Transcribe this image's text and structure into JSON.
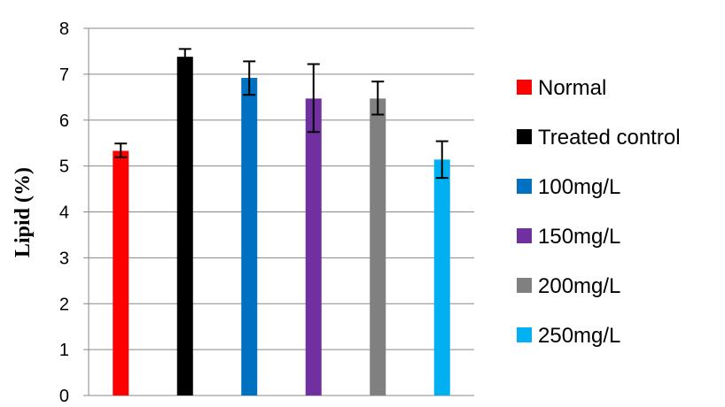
{
  "chart_data": {
    "type": "bar",
    "categories": [
      "Normal",
      "Treated control",
      "100mg/L",
      "150mg/L",
      "200mg/L",
      "250mg/L"
    ],
    "values": [
      5.33,
      7.38,
      6.92,
      6.47,
      6.47,
      5.14
    ],
    "error_bars": [
      [
        5.19,
        5.49
      ],
      [
        7.23,
        7.55
      ],
      [
        6.55,
        7.28
      ],
      [
        5.74,
        7.22
      ],
      [
        6.12,
        6.84
      ],
      [
        4.74,
        5.54
      ]
    ],
    "colors": [
      "#ff0000",
      "#000000",
      "#0070c0",
      "#7030a0",
      "#808080",
      "#00b0f0"
    ],
    "title": "",
    "xlabel": "",
    "ylabel": "Lipid (%)",
    "ylim": [
      0,
      8
    ],
    "yticks": [
      "0",
      "1",
      "2",
      "3",
      "4",
      "5",
      "6",
      "7",
      "8"
    ],
    "grid": true,
    "legend": {
      "position": "right",
      "entries": [
        "Normal",
        "Treated control",
        "100mg/L",
        "150mg/L",
        "200mg/L",
        "250mg/L"
      ]
    }
  }
}
